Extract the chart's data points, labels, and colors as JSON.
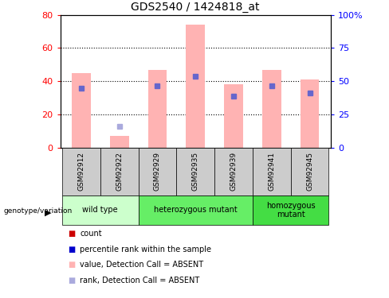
{
  "title": "GDS2540 / 1424818_at",
  "samples": [
    "GSM92912",
    "GSM92922",
    "GSM92929",
    "GSM92935",
    "GSM92939",
    "GSM92941",
    "GSM92945"
  ],
  "pink_bars": [
    45,
    7,
    47,
    74,
    38,
    47,
    41
  ],
  "blue_dots": [
    36,
    13,
    37,
    43,
    31,
    37,
    33
  ],
  "absent_pink": [
    false,
    true,
    false,
    false,
    false,
    false,
    false
  ],
  "absent_blue": [
    false,
    true,
    false,
    false,
    false,
    false,
    false
  ],
  "ylim_left": [
    0,
    80
  ],
  "ylim_right": [
    0,
    100
  ],
  "yticks_left": [
    0,
    20,
    40,
    60,
    80
  ],
  "yticks_right": [
    0,
    25,
    50,
    75,
    100
  ],
  "bar_color": "#ffb3b3",
  "dot_color_present": "#6666cc",
  "dot_color_absent": "#aaaadd",
  "group_configs": [
    {
      "indices": [
        0,
        1
      ],
      "label": "wild type",
      "color": "#ccffcc"
    },
    {
      "indices": [
        2,
        3,
        4
      ],
      "label": "heterozygous mutant",
      "color": "#66ee66"
    },
    {
      "indices": [
        5,
        6
      ],
      "label": "homozygous\nmutant",
      "color": "#44dd44"
    }
  ],
  "legend_colors": [
    "#cc0000",
    "#0000cc",
    "#ffb3b3",
    "#aaaadd"
  ],
  "legend_labels": [
    "count",
    "percentile rank within the sample",
    "value, Detection Call = ABSENT",
    "rank, Detection Call = ABSENT"
  ]
}
